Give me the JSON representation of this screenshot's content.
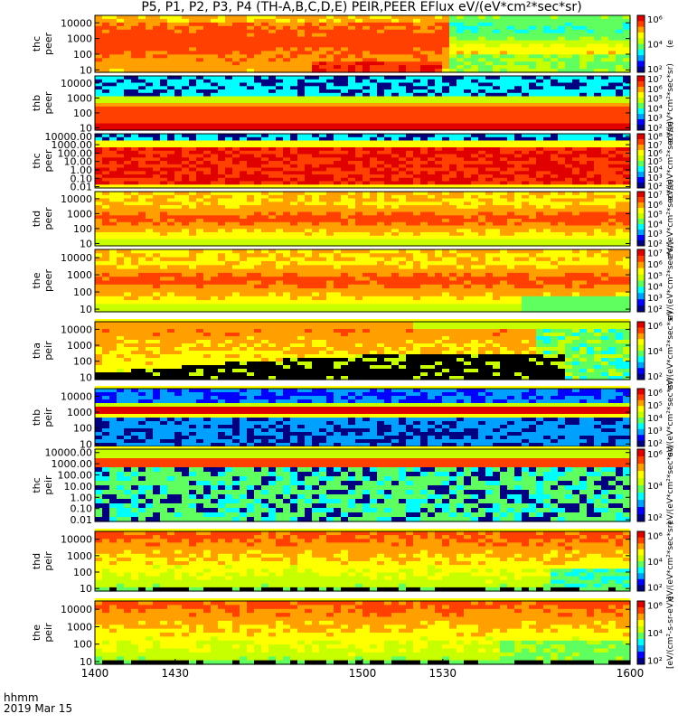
{
  "title": "P5, P1, P2, P3, P4 (TH-A,B,C,D,E) PEIR,PEER EFlux eV/(eV*cm²*sec*sr)",
  "footer": {
    "line1": "hhmm",
    "line2": "2019 Mar 15"
  },
  "colors": {
    "colormap": [
      "#000080",
      "#0000ff",
      "#00a0ff",
      "#00ffff",
      "#60ff60",
      "#c8ff00",
      "#ffff00",
      "#ffa000",
      "#ff4000",
      "#e00000"
    ],
    "frame": "#000000"
  },
  "chart_data": {
    "type": "heatmap",
    "x_tick_labels": [
      "1400",
      "1430",
      "1500",
      "1530",
      "1600"
    ],
    "x_tick_values": [
      1400,
      1430,
      1500,
      1530,
      1600
    ],
    "xlim": [
      1400,
      1600
    ],
    "y_scale": "log",
    "panels": [
      {
        "label1": "thc",
        "label2": "peer",
        "ylim": [
          7,
          30000
        ],
        "yticks": [
          "10",
          "100",
          "1000",
          "10000"
        ],
        "yvals": [
          10,
          100,
          1000,
          10000
        ],
        "cbar": [
          "10²",
          "10⁴",
          "10⁶"
        ],
        "cvals": [
          2,
          4,
          6
        ],
        "cbar_label": "(e"
      },
      {
        "label1": "thb",
        "label2": "peer",
        "ylim": [
          7,
          30000
        ],
        "yticks": [
          "10",
          "100",
          "1000",
          "10000"
        ],
        "yvals": [
          10,
          100,
          1000,
          10000
        ],
        "cbar": [
          "10²",
          "10³",
          "10⁴",
          "10⁵",
          "10⁶",
          "10⁷"
        ],
        "cvals": [
          2,
          3,
          4,
          5,
          6,
          7
        ],
        "cbar_label": "eV/(eV*cm²*sec*sr)"
      },
      {
        "label1": "thc",
        "label2": "peer",
        "ylim": [
          0.007,
          20000
        ],
        "yticks": [
          "0.01",
          "0.10",
          "1.00",
          "10.00",
          "100.00",
          "1000.00",
          "10000.00"
        ],
        "yvals": [
          0.01,
          0.1,
          1,
          10,
          100,
          1000,
          10000
        ],
        "cbar": [
          "10²",
          "10³",
          "10⁴",
          "10⁵",
          "10⁶",
          "10⁷",
          "10⁸"
        ],
        "cvals": [
          2,
          3,
          4,
          5,
          6,
          7,
          8
        ],
        "cbar_label": "eV/(eV*cm²*sec*sr)"
      },
      {
        "label1": "thd",
        "label2": "peer",
        "ylim": [
          7,
          30000
        ],
        "yticks": [
          "10",
          "100",
          "1000",
          "10000"
        ],
        "yvals": [
          10,
          100,
          1000,
          10000
        ],
        "cbar": [
          "10²",
          "10³",
          "10⁴",
          "10⁵",
          "10⁶",
          "10⁷"
        ],
        "cvals": [
          2,
          3,
          4,
          5,
          6,
          7
        ],
        "cbar_label": "eV/(eV*cm²*sec*sr)"
      },
      {
        "label1": "the",
        "label2": "peer",
        "ylim": [
          7,
          30000
        ],
        "yticks": [
          "10",
          "100",
          "1000",
          "10000"
        ],
        "yvals": [
          10,
          100,
          1000,
          10000
        ],
        "cbar": [
          "10²",
          "10³",
          "10⁴",
          "10⁵",
          "10⁶",
          "10⁷"
        ],
        "cvals": [
          2,
          3,
          4,
          5,
          6,
          7
        ],
        "cbar_label": "eV/(eV*cm²*sec*sr)"
      },
      {
        "label1": "tha",
        "label2": "peir",
        "ylim": [
          7,
          30000
        ],
        "yticks": [
          "10",
          "100",
          "1000",
          "10000"
        ],
        "yvals": [
          10,
          100,
          1000,
          10000
        ],
        "cbar": [
          "10²",
          "10⁴",
          "10⁶"
        ],
        "cvals": [
          2,
          4,
          6
        ],
        "cbar_label": "eV/(eV*cm²*sec*sr)"
      },
      {
        "label1": "thb",
        "label2": "peir",
        "ylim": [
          7,
          30000
        ],
        "yticks": [
          "10",
          "100",
          "1000",
          "10000"
        ],
        "yvals": [
          10,
          100,
          1000,
          10000
        ],
        "cbar": [
          "10²",
          "10³",
          "10⁴",
          "10⁵",
          "10⁶"
        ],
        "cvals": [
          2,
          3,
          4,
          5,
          6
        ],
        "cbar_label": "eV/(eV*cm²*sec*sr)"
      },
      {
        "label1": "thc",
        "label2": "peir",
        "ylim": [
          0.007,
          20000
        ],
        "yticks": [
          "0.01",
          "0.10",
          "1.00",
          "10.00",
          "100.00",
          "1000.00",
          "10000.00"
        ],
        "yvals": [
          0.01,
          0.1,
          1,
          10,
          100,
          1000,
          10000
        ],
        "cbar": [
          "10²",
          "10⁴",
          "10⁶"
        ],
        "cvals": [
          2,
          4,
          6
        ],
        "cbar_label": "eV/(eV*cm²*sec*sr)"
      },
      {
        "label1": "thd",
        "label2": "peir",
        "ylim": [
          7,
          30000
        ],
        "yticks": [
          "10",
          "100",
          "1000",
          "10000"
        ],
        "yvals": [
          10,
          100,
          1000,
          10000
        ],
        "cbar": [
          "10²",
          "10⁴",
          "10⁶"
        ],
        "cvals": [
          2,
          4,
          6
        ],
        "cbar_label": "eV/(eV*cm²*sec*sr)"
      },
      {
        "label1": "the",
        "label2": "peir",
        "ylim": [
          7,
          30000
        ],
        "yticks": [
          "10",
          "100",
          "1000",
          "10000"
        ],
        "yvals": [
          10,
          100,
          1000,
          10000
        ],
        "cbar": [
          "10²",
          "10⁴",
          "10⁶"
        ],
        "cvals": [
          2,
          4,
          6
        ],
        "cbar_label": "[eV/(cm²-s-sr-eV)]"
      }
    ]
  }
}
